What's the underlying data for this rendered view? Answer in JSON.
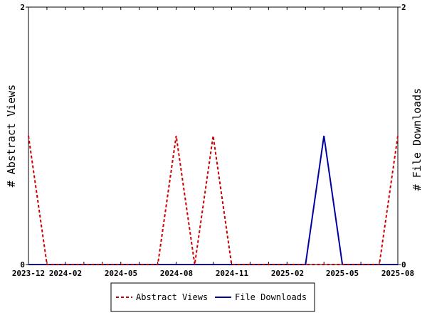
{
  "chart_data": {
    "type": "line",
    "title": "",
    "x_ticks": [
      "2023-12",
      "2024-02",
      "2024-05",
      "2024-08",
      "2024-11",
      "2025-02",
      "2025-05",
      "2025-08"
    ],
    "y_left": {
      "label": "# Abstract Views",
      "ticks": [
        "0",
        "2"
      ],
      "range": [
        0,
        2
      ]
    },
    "y_right": {
      "label": "# File Downloads",
      "ticks": [
        "0",
        "2"
      ],
      "range": [
        0,
        2
      ]
    },
    "x_labels": [
      "2023-12",
      "2024-01",
      "2024-02",
      "2024-03",
      "2024-04",
      "2024-05",
      "2024-06",
      "2024-07",
      "2024-08",
      "2024-09",
      "2024-10",
      "2024-11",
      "2024-12",
      "2025-01",
      "2025-02",
      "2025-03",
      "2025-04",
      "2025-05",
      "2025-06",
      "2025-07",
      "2025-08"
    ],
    "series": [
      {
        "name": "Abstract Views",
        "color": "#cc0000",
        "dash": true,
        "axis": "left",
        "values": [
          1,
          0,
          0,
          0,
          0,
          0,
          0,
          0,
          1,
          0,
          1,
          0,
          0,
          0,
          0,
          0,
          0,
          0,
          0,
          0,
          1
        ]
      },
      {
        "name": "File Downloads",
        "color": "#0000a0",
        "dash": false,
        "axis": "right",
        "values": [
          0,
          0,
          0,
          0,
          0,
          0,
          0,
          0,
          0,
          0,
          0,
          0,
          0,
          0,
          0,
          0,
          1,
          0,
          0,
          0,
          0
        ]
      }
    ],
    "legend_position": "bottom-center"
  }
}
